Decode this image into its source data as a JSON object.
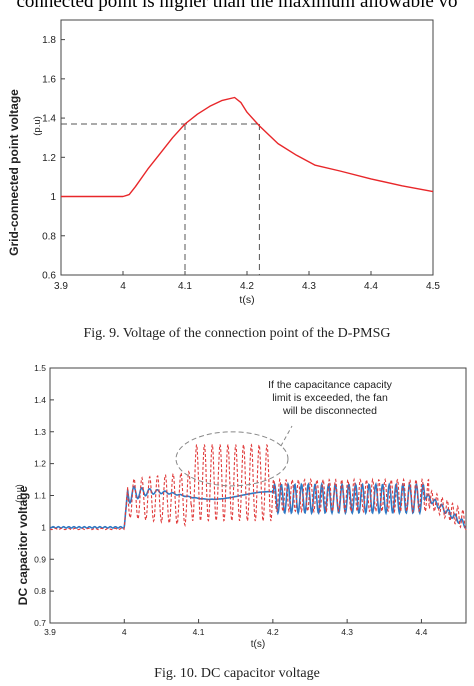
{
  "header_text": "connected point is higher than the maximum allowable vo",
  "figure1": {
    "caption": "Fig. 9. Voltage of the connection point of the D-PMSG",
    "chart_data": {
      "type": "line",
      "xlabel": "t(s)",
      "ylabel": "Grid-connected point voltage",
      "yunit": "(p.u)",
      "xlim": [
        3.9,
        4.5
      ],
      "ylim": [
        0.6,
        1.9
      ],
      "xticks": [
        "3.9",
        "4",
        "4.1",
        "4.2",
        "4.3",
        "4.4",
        "4.5"
      ],
      "yticks": [
        "0.6",
        "0.8",
        "1",
        "1.2",
        "1.4",
        "1.6",
        "1.8"
      ],
      "grid": false,
      "series": [
        {
          "color": "#e8272a",
          "x": [
            3.9,
            4.0,
            4.01,
            4.02,
            4.04,
            4.06,
            4.08,
            4.1,
            4.12,
            4.14,
            4.16,
            4.18,
            4.19,
            4.2,
            4.22,
            4.25,
            4.28,
            4.31,
            4.35,
            4.4,
            4.45,
            4.5
          ],
          "y": [
            1.0,
            1.0,
            1.01,
            1.05,
            1.14,
            1.22,
            1.3,
            1.37,
            1.42,
            1.46,
            1.49,
            1.505,
            1.48,
            1.43,
            1.36,
            1.27,
            1.21,
            1.16,
            1.13,
            1.09,
            1.055,
            1.025
          ]
        }
      ],
      "reference_lines": [
        {
          "orientation": "horizontal",
          "y": 1.37,
          "x_end": 4.22,
          "style": "dashed"
        },
        {
          "orientation": "vertical",
          "x": 4.1,
          "style": "dashed"
        },
        {
          "orientation": "vertical",
          "x": 4.22,
          "style": "dashed"
        }
      ]
    }
  },
  "figure2": {
    "caption": "Fig. 10. DC capacitor voltage",
    "annotation": [
      "If the capacitance capacity",
      "limit is exceeded, the fan",
      "will be disconnected"
    ],
    "chart_data": {
      "type": "line",
      "xlabel": "t(s)",
      "ylabel": "DC capacitor voltage",
      "yunit": "(p.u)",
      "xlim": [
        3.9,
        4.46
      ],
      "ylim": [
        0.7,
        1.5
      ],
      "xticks": [
        "3.9",
        "4",
        "4.1",
        "4.2",
        "4.3",
        "4.4"
      ],
      "yticks": [
        "0.7",
        "0.8",
        "0.9",
        "1",
        "1.1",
        "1.2",
        "1.3",
        "1.4",
        "1.5"
      ],
      "grid": false,
      "series": [
        {
          "color": "#e03a3a",
          "style": "dashed",
          "description_values": "dashed red oscillating curve, reaches ~1.25 around t=4.1-4.2"
        },
        {
          "color": "#2f79c4",
          "style": "solid",
          "description_values": "solid blue curve, ~1.1 then dense oscillation 4.2-4.4, drops to ~1.0 at end"
        }
      ]
    }
  },
  "colors": {
    "red_line": "#e8272a",
    "blue_line": "#2f79c4",
    "axis": "#333333",
    "background": "#ffffff"
  }
}
